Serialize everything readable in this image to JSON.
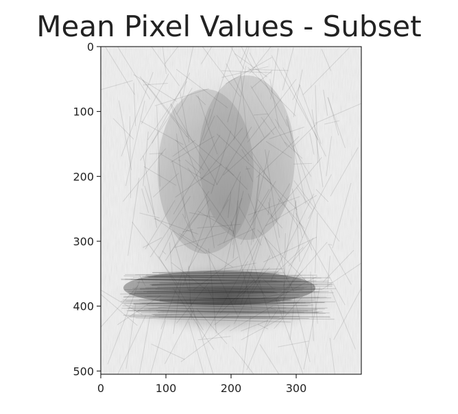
{
  "chart_data": {
    "type": "heatmap",
    "title": "Mean Pixel Values - Subset",
    "xlabel": "",
    "ylabel": "",
    "x_ticks": [
      0,
      100,
      200,
      300
    ],
    "y_ticks": [
      0,
      100,
      200,
      300,
      400,
      500
    ],
    "xlim": [
      0,
      400
    ],
    "ylim": [
      505,
      0
    ],
    "colormap": "gray",
    "image_description_hidden": true,
    "background_color": "#eeeeee",
    "ink_color": "#111111"
  }
}
